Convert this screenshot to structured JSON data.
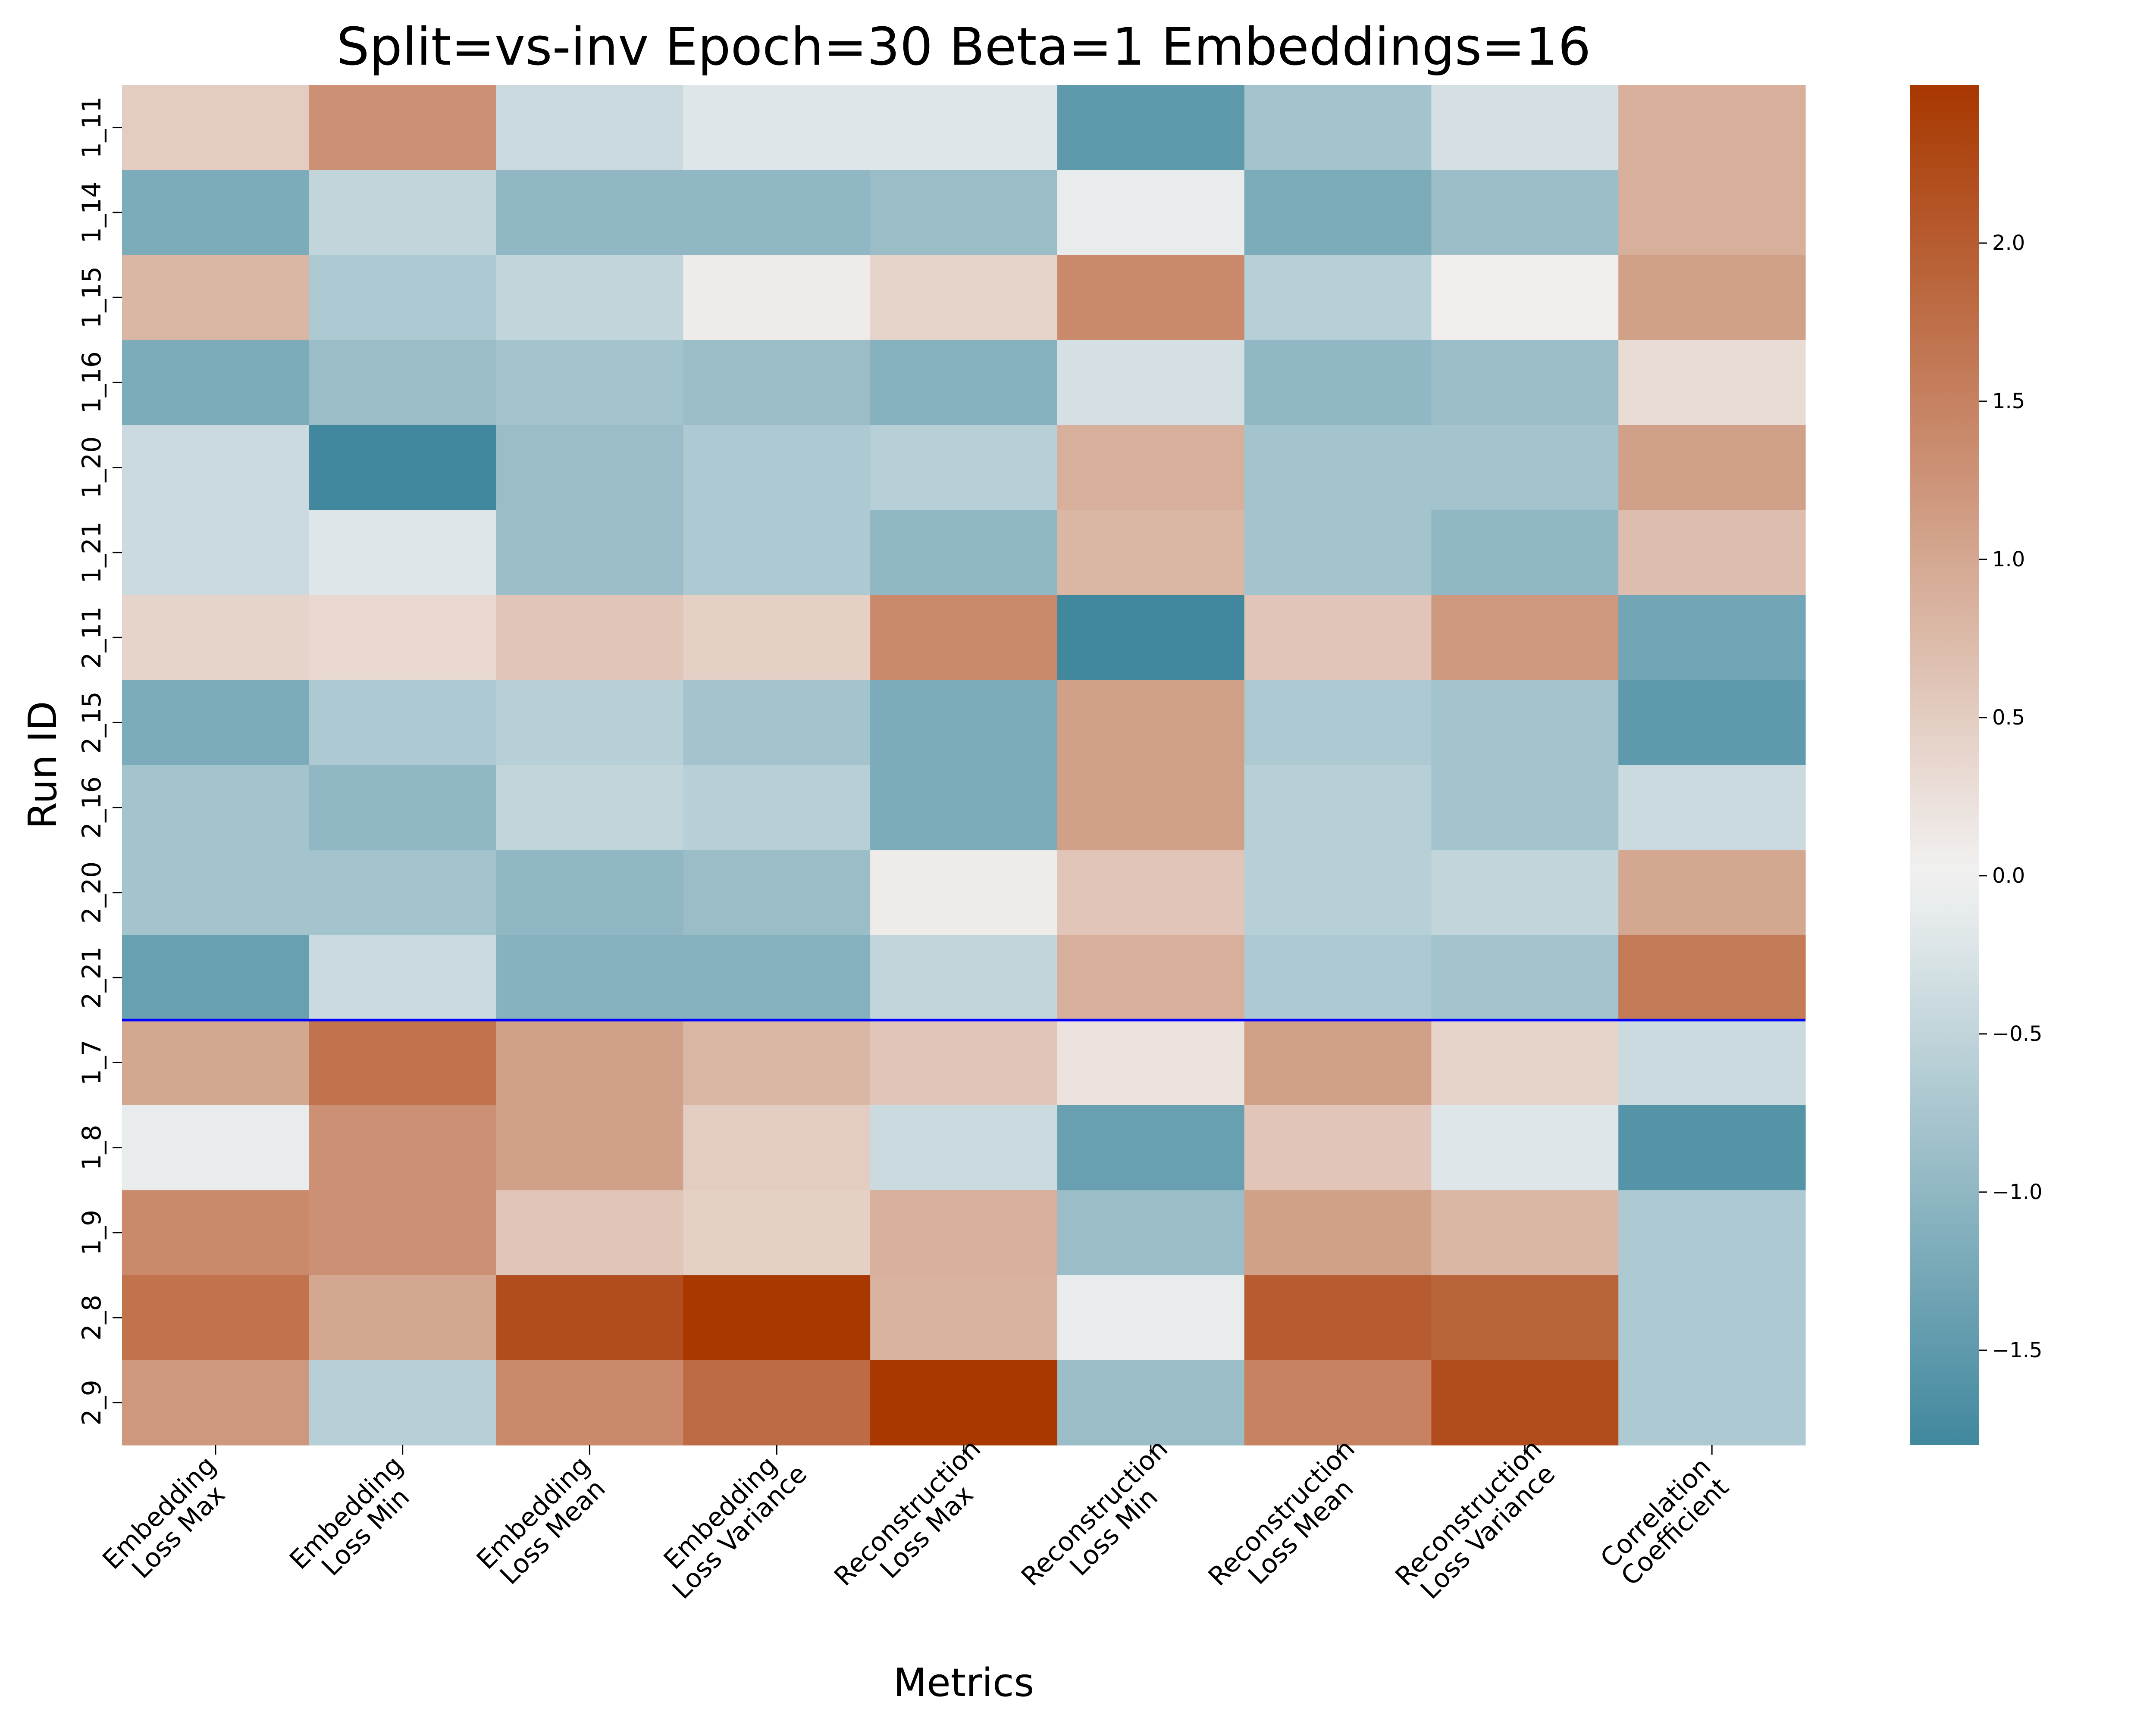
{
  "chart_data": {
    "type": "heatmap",
    "title": "Split=vs-inv Epoch=30 Beta=1 Embeddings=16",
    "xlabel": "Metrics",
    "ylabel": "Run ID",
    "rows": [
      "1_11",
      "1_14",
      "1_15",
      "1_16",
      "1_20",
      "1_21",
      "2_11",
      "2_15",
      "2_16",
      "2_20",
      "2_21",
      "1_7",
      "1_8",
      "1_9",
      "2_8",
      "2_9"
    ],
    "columns": [
      [
        "Embedding",
        "Loss Max"
      ],
      [
        "Embedding",
        "Loss Min"
      ],
      [
        "Embedding",
        "Loss Mean"
      ],
      [
        "Embedding",
        "Loss Variance"
      ],
      [
        "Reconstruction",
        "Loss Max"
      ],
      [
        "Reconstruction",
        "Loss Min"
      ],
      [
        "Reconstruction",
        "Loss Mean"
      ],
      [
        "Reconstruction",
        "Loss Variance"
      ],
      [
        "Correlation",
        "Coefficient"
      ]
    ],
    "values": [
      [
        0.5,
        1.3,
        -0.4,
        -0.2,
        -0.2,
        -1.5,
        -0.8,
        -0.3,
        0.9
      ],
      [
        -1.2,
        -0.5,
        -1.0,
        -1.0,
        -0.9,
        -0.1,
        -1.2,
        -0.9,
        0.9
      ],
      [
        0.8,
        -0.7,
        -0.5,
        0.1,
        0.4,
        1.4,
        -0.6,
        0.05,
        1.1
      ],
      [
        -1.2,
        -0.9,
        -0.8,
        -0.9,
        -1.1,
        -0.3,
        -1.0,
        -0.9,
        0.3
      ],
      [
        -0.4,
        -1.8,
        -0.9,
        -0.7,
        -0.6,
        0.9,
        -0.8,
        -0.8,
        1.1
      ],
      [
        -0.4,
        -0.2,
        -0.9,
        -0.7,
        -1.0,
        0.8,
        -0.8,
        -1.0,
        0.7
      ],
      [
        0.4,
        0.35,
        0.6,
        0.45,
        1.4,
        -1.8,
        0.6,
        1.2,
        -1.3
      ],
      [
        -1.2,
        -0.7,
        -0.6,
        -0.8,
        -1.2,
        1.1,
        -0.7,
        -0.8,
        -1.5
      ],
      [
        -0.8,
        -1.0,
        -0.5,
        -0.6,
        -1.2,
        1.1,
        -0.6,
        -0.8,
        -0.4
      ],
      [
        -0.8,
        -0.8,
        -1.0,
        -0.9,
        0.1,
        0.6,
        -0.6,
        -0.5,
        1.0
      ],
      [
        -1.4,
        -0.4,
        -1.1,
        -1.1,
        -0.5,
        0.9,
        -0.7,
        -0.8,
        1.6
      ],
      [
        1.0,
        1.7,
        1.1,
        0.8,
        0.6,
        0.2,
        1.1,
        0.4,
        -0.4
      ],
      [
        -0.1,
        1.3,
        1.1,
        0.5,
        -0.4,
        -1.4,
        0.6,
        -0.2,
        -1.6
      ],
      [
        1.4,
        1.3,
        0.6,
        0.45,
        0.9,
        -0.9,
        1.1,
        0.8,
        -0.7
      ],
      [
        1.7,
        1.0,
        2.2,
        2.5,
        0.85,
        -0.1,
        2.0,
        1.9,
        -0.7
      ],
      [
        1.2,
        -0.6,
        1.4,
        1.8,
        2.5,
        -0.9,
        1.5,
        2.2,
        -0.7
      ]
    ],
    "divider_after_row": "2_21",
    "divider_color": "#0000ff",
    "vmin": -1.8,
    "vmax": 2.5,
    "colormap": {
      "low": "#41889e",
      "mid": "#f2f2f2",
      "high": "#a83700"
    },
    "colorbar_ticks": [
      "2.0",
      "1.5",
      "1.0",
      "0.5",
      "0.0",
      "−0.5",
      "−1.0",
      "−1.5"
    ]
  }
}
